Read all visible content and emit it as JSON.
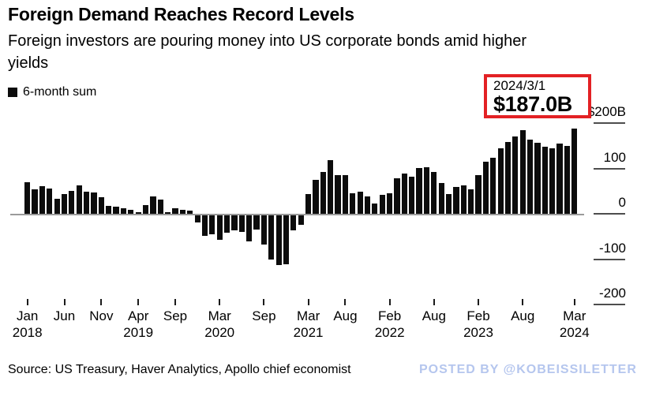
{
  "title": "Foreign Demand Reaches Record Levels",
  "subtitle": "Foreign investors are pouring money into US corporate bonds amid higher yields",
  "legend": {
    "label": "6-month sum",
    "swatch_color": "#0c0c0c"
  },
  "callout": {
    "date": "2024/3/1",
    "value": "$187.0B",
    "border_color": "#e32124"
  },
  "footer": {
    "source": "Source: US Treasury, Haver Analytics, Apollo chief economist",
    "posted_by": "POSTED BY @KOBEISSILETTER",
    "posted_by_color": "#b5c6ee"
  },
  "chart_data": {
    "type": "bar",
    "title": "Foreign Demand Reaches Record Levels",
    "series_name": "6-month sum",
    "unit": "$B",
    "bar_color": "#0c0c0c",
    "grid": "off",
    "legend_position": "top-left",
    "y_axis_side": "right",
    "ylim": [
      -200,
      200
    ],
    "x": [
      "2018-01",
      "2018-02",
      "2018-03",
      "2018-04",
      "2018-05",
      "2018-06",
      "2018-07",
      "2018-08",
      "2018-09",
      "2018-10",
      "2018-11",
      "2018-12",
      "2019-01",
      "2019-02",
      "2019-03",
      "2019-04",
      "2019-05",
      "2019-06",
      "2019-07",
      "2019-08",
      "2019-09",
      "2019-10",
      "2019-11",
      "2019-12",
      "2020-01",
      "2020-02",
      "2020-03",
      "2020-04",
      "2020-05",
      "2020-06",
      "2020-07",
      "2020-08",
      "2020-09",
      "2020-10",
      "2020-11",
      "2020-12",
      "2021-01",
      "2021-02",
      "2021-03",
      "2021-04",
      "2021-05",
      "2021-06",
      "2021-07",
      "2021-08",
      "2021-09",
      "2021-10",
      "2021-11",
      "2021-12",
      "2022-01",
      "2022-02",
      "2022-03",
      "2022-04",
      "2022-05",
      "2022-06",
      "2022-07",
      "2022-08",
      "2022-09",
      "2022-10",
      "2022-11",
      "2022-12",
      "2023-01",
      "2023-02",
      "2023-03",
      "2023-04",
      "2023-05",
      "2023-06",
      "2023-07",
      "2023-08",
      "2023-09",
      "2023-10",
      "2023-11",
      "2023-12",
      "2024-01",
      "2024-02",
      "2024-03"
    ],
    "values": [
      70,
      54,
      61,
      55,
      33,
      44,
      51,
      63,
      48,
      47,
      37,
      17,
      16,
      12,
      8,
      4,
      20,
      39,
      31,
      3,
      12,
      9,
      7,
      -19,
      -48,
      -46,
      -57,
      -41,
      -37,
      -40,
      -60,
      -35,
      -68,
      -100,
      -113,
      -112,
      -36,
      -24,
      43,
      75,
      92,
      118,
      86,
      86,
      46,
      48,
      39,
      23,
      41,
      45,
      78,
      89,
      82,
      101,
      103,
      92,
      67,
      43,
      60,
      62,
      54,
      85,
      115,
      124,
      145,
      159,
      170,
      184,
      164,
      156,
      148,
      144,
      154,
      150,
      187
    ],
    "last_point_annotation": {
      "x": "2024-03",
      "label_date": "2024/3/1",
      "label_value": "$187.0B",
      "value": 187.0
    },
    "y_ticks": [
      {
        "label": "$200B",
        "value": 200
      },
      {
        "label": "100",
        "value": 100
      },
      {
        "label": "0",
        "value": 0
      },
      {
        "label": "-100",
        "value": -100
      },
      {
        "label": "-200",
        "value": -200
      }
    ],
    "x_ticks": [
      {
        "index": 0,
        "month": "Jan",
        "year": "2018"
      },
      {
        "index": 5,
        "month": "Jun",
        "year": ""
      },
      {
        "index": 10,
        "month": "Nov",
        "year": ""
      },
      {
        "index": 15,
        "month": "Apr",
        "year": "2019"
      },
      {
        "index": 20,
        "month": "Sep",
        "year": ""
      },
      {
        "index": 26,
        "month": "Mar",
        "year": "2020"
      },
      {
        "index": 32,
        "month": "Sep",
        "year": ""
      },
      {
        "index": 38,
        "month": "Mar",
        "year": "2021"
      },
      {
        "index": 43,
        "month": "Aug",
        "year": ""
      },
      {
        "index": 49,
        "month": "Feb",
        "year": "2022"
      },
      {
        "index": 55,
        "month": "Aug",
        "year": ""
      },
      {
        "index": 61,
        "month": "Feb",
        "year": "2023"
      },
      {
        "index": 67,
        "month": "Aug",
        "year": ""
      },
      {
        "index": 74,
        "month": "Mar",
        "year": "2024"
      }
    ]
  }
}
